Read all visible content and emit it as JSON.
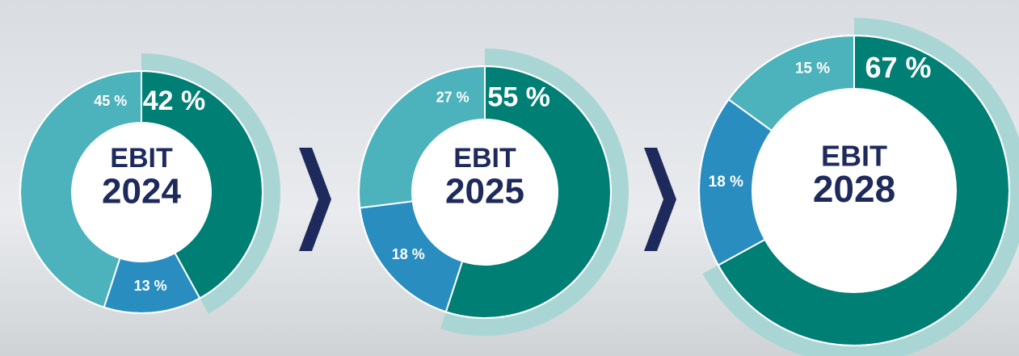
{
  "chart_data": [
    {
      "type": "pie",
      "donut": true,
      "title": "EBIT",
      "subtitle": "2024",
      "values": [
        42,
        13,
        45
      ],
      "value_labels": [
        "42 %",
        "13 %",
        "45 %"
      ],
      "colors": [
        "#007f74",
        "#2a8dc0",
        "#4cb2bb"
      ],
      "highlight_color": "#a9d6d4"
    },
    {
      "type": "pie",
      "donut": true,
      "title": "EBIT",
      "subtitle": "2025",
      "values": [
        55,
        18,
        27
      ],
      "value_labels": [
        "55 %",
        "18 %",
        "27 %"
      ],
      "colors": [
        "#007f74",
        "#2a8dc0",
        "#4cb2bb"
      ],
      "highlight_color": "#a9d6d4"
    },
    {
      "type": "pie",
      "donut": true,
      "title": "EBIT",
      "subtitle": "2028",
      "values": [
        67,
        18,
        15
      ],
      "value_labels": [
        "67 %",
        "18 %",
        "15 %"
      ],
      "colors": [
        "#007f74",
        "#2a8dc0",
        "#4cb2bb"
      ],
      "highlight_color": "#a9d6d4"
    }
  ]
}
